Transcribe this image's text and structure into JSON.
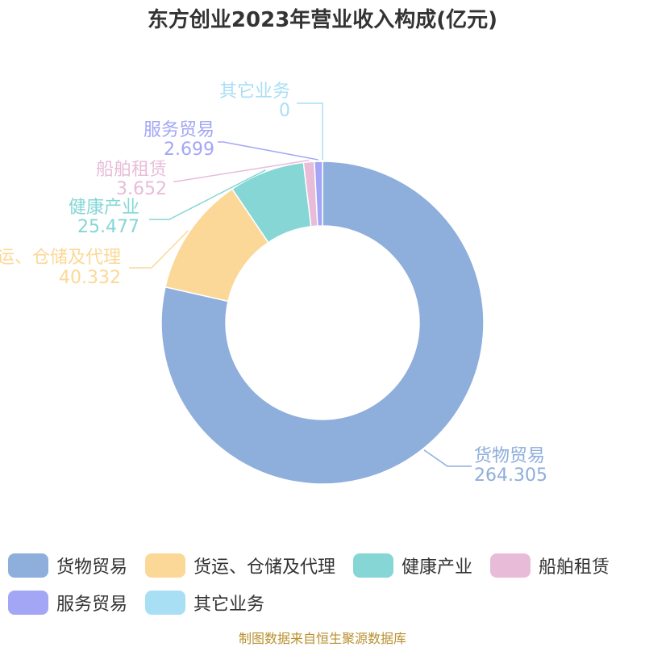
{
  "title": "东方创业2023年营业收入构成(亿元)",
  "source": "制图数据来自恒生聚源数据库",
  "chart_data": {
    "type": "pie",
    "variant": "donut",
    "title": "东方创业2023年营业收入构成(亿元)",
    "legend_position": "bottom",
    "slices": [
      {
        "name": "货物贸易",
        "value": 264.305,
        "value_label": "264.305",
        "color": "#8eaedb"
      },
      {
        "name": "货运、仓储及代理",
        "value": 40.332,
        "value_label": "40.332",
        "color": "#fcd898"
      },
      {
        "name": "健康产业",
        "value": 25.477,
        "value_label": "25.477",
        "color": "#86d6d6"
      },
      {
        "name": "船舶租赁",
        "value": 3.652,
        "value_label": "3.652",
        "color": "#e8bcd9"
      },
      {
        "name": "服务贸易",
        "value": 2.699,
        "value_label": "2.699",
        "color": "#a3a6f5"
      },
      {
        "name": "其它业务",
        "value": 0,
        "value_label": "0",
        "color": "#a9dff5"
      }
    ]
  }
}
